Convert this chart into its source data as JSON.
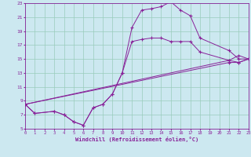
{
  "title": "",
  "xlabel": "Windchill (Refroidissement éolien,°C)",
  "ylabel": "",
  "xlim": [
    0,
    23
  ],
  "ylim": [
    5,
    23
  ],
  "xticks": [
    0,
    1,
    2,
    3,
    4,
    5,
    6,
    7,
    8,
    9,
    10,
    11,
    12,
    13,
    14,
    15,
    16,
    17,
    18,
    19,
    20,
    21,
    22,
    23
  ],
  "yticks": [
    5,
    7,
    9,
    11,
    13,
    15,
    17,
    19,
    21,
    23
  ],
  "bg_color": "#cce8f0",
  "line_color": "#882299",
  "grid_color": "#99ccbb",
  "line1_x": [
    0,
    1,
    3,
    4,
    5,
    6,
    7,
    8,
    9,
    10,
    11,
    12,
    13,
    14,
    15,
    16,
    17,
    18,
    21,
    22,
    23
  ],
  "line1_y": [
    8.5,
    7.2,
    7.5,
    7.0,
    6.0,
    5.5,
    8.0,
    8.5,
    10.0,
    13.0,
    19.5,
    22.0,
    22.2,
    22.5,
    23.2,
    22.0,
    21.2,
    18.0,
    16.2,
    15.0,
    15.0
  ],
  "line2_x": [
    0,
    1,
    3,
    4,
    5,
    6,
    7,
    8,
    9,
    10,
    11,
    12,
    13,
    14,
    15,
    16,
    17,
    18,
    21,
    22,
    23
  ],
  "line2_y": [
    8.5,
    7.2,
    7.5,
    7.0,
    6.0,
    5.5,
    8.0,
    8.5,
    10.0,
    13.0,
    17.5,
    17.8,
    18.0,
    18.0,
    17.5,
    17.5,
    17.5,
    16.0,
    14.8,
    14.5,
    15.0
  ],
  "line3_x": [
    0,
    21,
    22,
    23
  ],
  "line3_y": [
    8.5,
    14.8,
    15.5,
    15.0
  ],
  "line4_x": [
    0,
    21,
    22,
    23
  ],
  "line4_y": [
    8.5,
    14.5,
    14.5,
    15.0
  ],
  "marker": "+"
}
